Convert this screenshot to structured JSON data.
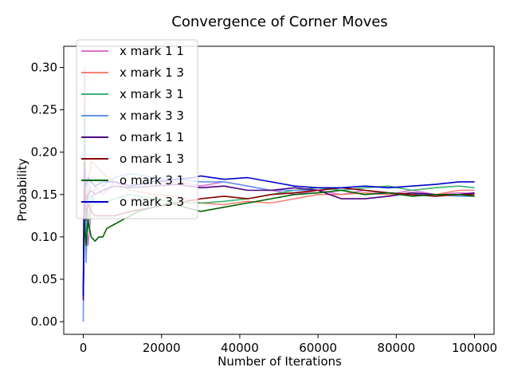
{
  "chart_data": {
    "type": "line",
    "title": "Convergence of Corner Moves",
    "xlabel": "Number of Iterations",
    "ylabel": "Probability",
    "xlim": [
      -5000,
      105000
    ],
    "ylim": [
      -0.015,
      0.325
    ],
    "xticks": [
      0,
      20000,
      40000,
      60000,
      80000,
      100000
    ],
    "yticks": [
      0.0,
      0.05,
      0.1,
      0.15,
      0.2,
      0.25,
      0.3
    ],
    "xtick_labels": [
      "0",
      "20000",
      "40000",
      "60000",
      "80000",
      "100000"
    ],
    "ytick_labels": [
      "0.00",
      "0.05",
      "0.10",
      "0.15",
      "0.20",
      "0.25",
      "0.30"
    ],
    "grid": false,
    "legend_position": "upper-left",
    "series": [
      {
        "name": "x mark 1 1",
        "color": "#da70d6",
        "x": [
          0,
          300,
          700,
          1200,
          2000,
          3000,
          5000,
          8000,
          12000,
          18000,
          24000,
          30000,
          36000,
          42000,
          48000,
          54000,
          60000,
          66000,
          72000,
          78000,
          84000,
          90000,
          96000,
          100000
        ],
        "y": [
          0.03,
          0.3,
          0.12,
          0.09,
          0.13,
          0.16,
          0.15,
          0.165,
          0.16,
          0.165,
          0.165,
          0.16,
          0.165,
          0.16,
          0.155,
          0.15,
          0.155,
          0.15,
          0.155,
          0.15,
          0.155,
          0.15,
          0.152,
          0.151
        ]
      },
      {
        "name": "x mark 1 3",
        "color": "#fa8072",
        "x": [
          0,
          300,
          700,
          1200,
          2000,
          3000,
          5000,
          8000,
          12000,
          18000,
          24000,
          30000,
          36000,
          42000,
          48000,
          54000,
          60000,
          66000,
          72000,
          78000,
          84000,
          90000,
          96000,
          100000
        ],
        "y": [
          0.03,
          0.2,
          0.13,
          0.16,
          0.19,
          0.185,
          0.175,
          0.165,
          0.155,
          0.15,
          0.148,
          0.14,
          0.138,
          0.142,
          0.14,
          0.145,
          0.15,
          0.15,
          0.152,
          0.15,
          0.152,
          0.15,
          0.155,
          0.155
        ]
      },
      {
        "name": "x mark 3 1",
        "color": "#3cb371",
        "x": [
          0,
          300,
          700,
          1200,
          2000,
          3000,
          5000,
          8000,
          12000,
          18000,
          24000,
          30000,
          36000,
          42000,
          48000,
          54000,
          60000,
          66000,
          72000,
          78000,
          84000,
          90000,
          96000,
          100000
        ],
        "y": [
          0.03,
          0.25,
          0.1,
          0.11,
          0.15,
          0.14,
          0.14,
          0.145,
          0.15,
          0.145,
          0.14,
          0.14,
          0.142,
          0.145,
          0.15,
          0.155,
          0.158,
          0.155,
          0.158,
          0.16,
          0.155,
          0.158,
          0.16,
          0.158
        ]
      },
      {
        "name": "x mark 3 3",
        "color": "#6495ed",
        "x": [
          0,
          300,
          700,
          1200,
          2000,
          3000,
          5000,
          8000,
          12000,
          18000,
          24000,
          30000,
          36000,
          42000,
          48000,
          54000,
          60000,
          66000,
          72000,
          78000,
          84000,
          90000,
          96000,
          100000
        ],
        "y": [
          0.0,
          0.2,
          0.07,
          0.14,
          0.17,
          0.17,
          0.16,
          0.17,
          0.175,
          0.17,
          0.168,
          0.165,
          0.165,
          0.16,
          0.155,
          0.155,
          0.155,
          0.158,
          0.155,
          0.152,
          0.15,
          0.15,
          0.148,
          0.148
        ]
      },
      {
        "name": "o mark 1 1",
        "color": "#4b0082",
        "x": [
          0,
          300,
          700,
          1200,
          2000,
          3000,
          5000,
          8000,
          12000,
          18000,
          24000,
          30000,
          36000,
          42000,
          48000,
          54000,
          60000,
          66000,
          72000,
          78000,
          84000,
          90000,
          96000,
          100000
        ],
        "y": [
          0.025,
          0.17,
          0.14,
          0.15,
          0.155,
          0.15,
          0.155,
          0.16,
          0.158,
          0.16,
          0.162,
          0.158,
          0.16,
          0.155,
          0.155,
          0.158,
          0.155,
          0.145,
          0.145,
          0.148,
          0.152,
          0.15,
          0.15,
          0.152
        ]
      },
      {
        "name": "o mark 1 3",
        "color": "#8b0000",
        "x": [
          0,
          300,
          700,
          1200,
          2000,
          3000,
          5000,
          8000,
          12000,
          18000,
          24000,
          30000,
          36000,
          42000,
          48000,
          54000,
          60000,
          66000,
          72000,
          78000,
          84000,
          90000,
          96000,
          100000
        ],
        "y": [
          0.03,
          0.19,
          0.12,
          0.14,
          0.13,
          0.125,
          0.125,
          0.125,
          0.13,
          0.135,
          0.14,
          0.145,
          0.148,
          0.145,
          0.15,
          0.152,
          0.155,
          0.158,
          0.155,
          0.152,
          0.15,
          0.148,
          0.15,
          0.15
        ]
      },
      {
        "name": "o mark 3 1",
        "color": "#006400",
        "x": [
          0,
          300,
          700,
          1200,
          2000,
          3000,
          4000,
          5000,
          6000,
          8000,
          10000,
          14000,
          18000,
          22000,
          26000,
          30000,
          36000,
          42000,
          48000,
          54000,
          60000,
          66000,
          72000,
          78000,
          84000,
          90000,
          96000,
          100000
        ],
        "y": [
          0.03,
          0.12,
          0.09,
          0.12,
          0.1,
          0.095,
          0.1,
          0.1,
          0.11,
          0.115,
          0.12,
          0.13,
          0.135,
          0.14,
          0.135,
          0.13,
          0.135,
          0.14,
          0.145,
          0.15,
          0.152,
          0.155,
          0.15,
          0.152,
          0.148,
          0.15,
          0.15,
          0.148
        ]
      },
      {
        "name": "o mark 3 3",
        "color": "#0000cd",
        "x": [
          0,
          300,
          700,
          1200,
          2000,
          3000,
          5000,
          8000,
          12000,
          18000,
          24000,
          28000,
          30000,
          36000,
          42000,
          48000,
          54000,
          60000,
          66000,
          72000,
          78000,
          84000,
          90000,
          96000,
          100000
        ],
        "y": [
          0.03,
          0.18,
          0.16,
          0.17,
          0.165,
          0.16,
          0.165,
          0.165,
          0.16,
          0.165,
          0.168,
          0.17,
          0.172,
          0.168,
          0.17,
          0.165,
          0.16,
          0.158,
          0.158,
          0.16,
          0.158,
          0.16,
          0.162,
          0.165,
          0.165
        ]
      }
    ]
  }
}
